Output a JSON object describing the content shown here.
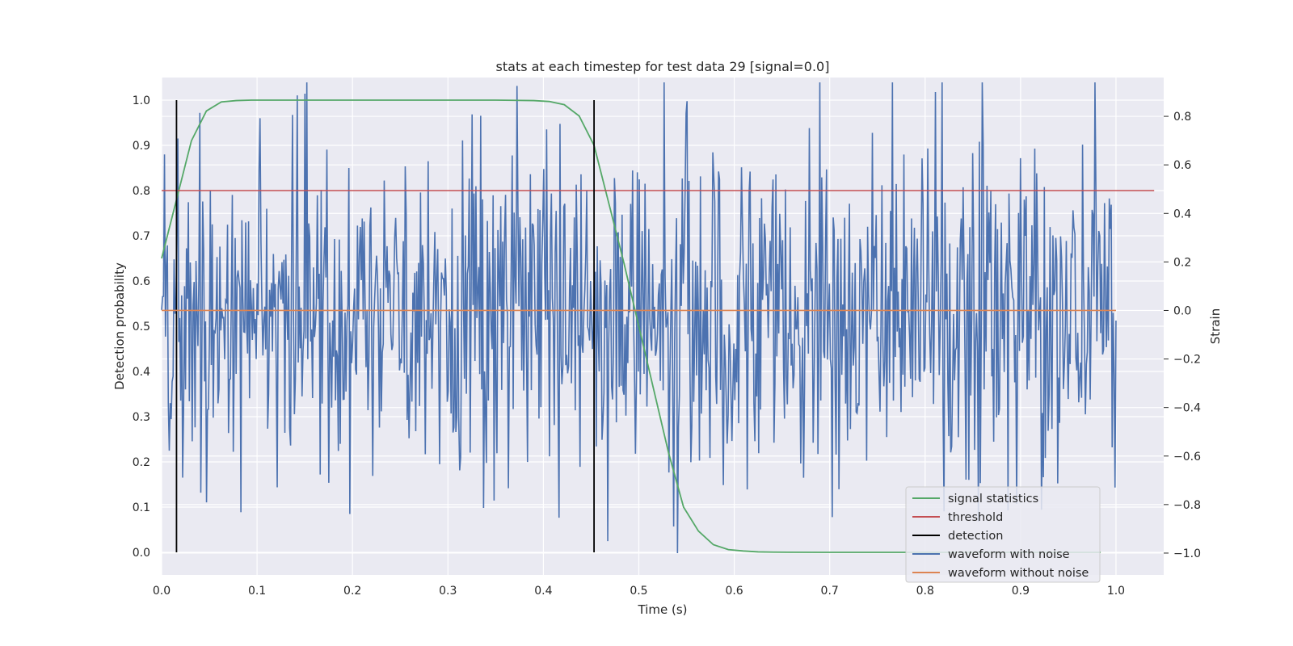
{
  "chart_data": {
    "type": "line",
    "title": "stats at each timestep for test data 29 [signal=0.0]",
    "xlabel": "Time (s)",
    "ylabel": "Detection probability",
    "ylabel_right": "Strain",
    "xlim": [
      0.0,
      1.05
    ],
    "ylim": [
      -0.05,
      1.05
    ],
    "ylim_right": [
      -1.09,
      0.96
    ],
    "x_ticks": [
      "0.0",
      "0.1",
      "0.2",
      "0.3",
      "0.4",
      "0.5",
      "0.6",
      "0.7",
      "0.8",
      "0.9",
      "1.0"
    ],
    "y_ticks": [
      "0.0",
      "0.1",
      "0.2",
      "0.3",
      "0.4",
      "0.5",
      "0.6",
      "0.7",
      "0.8",
      "0.9",
      "1.0"
    ],
    "y_ticks_right": [
      "−1.0",
      "−0.8",
      "−0.6",
      "−0.4",
      "−0.2",
      "0.0",
      "0.2",
      "0.4",
      "0.6",
      "0.8"
    ],
    "grid": true,
    "legend_position": "bottom-right",
    "series": [
      {
        "name": "signal statistics",
        "color": "#55a868",
        "axis": "left",
        "x": [
          0.0,
          0.0156,
          0.0312,
          0.0469,
          0.0625,
          0.0781,
          0.0938,
          0.1094,
          0.125,
          0.15,
          0.2,
          0.25,
          0.3,
          0.35,
          0.39,
          0.4062,
          0.4219,
          0.4375,
          0.4531,
          0.4688,
          0.4844,
          0.5,
          0.5156,
          0.5312,
          0.5469,
          0.5625,
          0.5781,
          0.5938,
          0.6094,
          0.625,
          0.6406,
          0.6562,
          0.7,
          0.8,
          0.9,
          0.97,
          0.984
        ],
        "y": [
          0.65,
          0.78,
          0.91,
          0.976,
          0.996,
          0.999,
          1.0,
          1.0,
          1.0,
          1.0,
          1.0,
          1.0,
          1.0,
          1.0,
          0.999,
          0.997,
          0.99,
          0.965,
          0.9,
          0.77,
          0.64,
          0.5,
          0.36,
          0.22,
          0.1,
          0.047,
          0.017,
          0.006,
          0.003,
          0.001,
          0.0005,
          0.0002,
          0.0,
          0.0,
          0.0,
          0.0,
          0.0
        ]
      },
      {
        "name": "threshold",
        "color": "#c44e52",
        "axis": "left",
        "x": [
          0.0,
          1.04
        ],
        "y": [
          0.8,
          0.8
        ]
      },
      {
        "name": "detection",
        "color": "#000000",
        "axis": "left",
        "vlines": [
          0.0156,
          0.4531
        ],
        "ymin": 0.0,
        "ymax": 1.0
      },
      {
        "name": "waveform with noise",
        "color": "#4c72b0",
        "axis": "right",
        "description": "Gaussian-like noise strain, approximately 1000 samples between 0.0 and 1.0 s, range about -1.0 to 0.94",
        "x_range": [
          0.0,
          1.0
        ],
        "samples": 1000,
        "y_range": [
          -1.0,
          0.94
        ]
      },
      {
        "name": "waveform without noise",
        "color": "#dd8452",
        "axis": "right",
        "x": [
          0.0,
          1.0
        ],
        "y": [
          0.0,
          0.0
        ]
      }
    ]
  }
}
